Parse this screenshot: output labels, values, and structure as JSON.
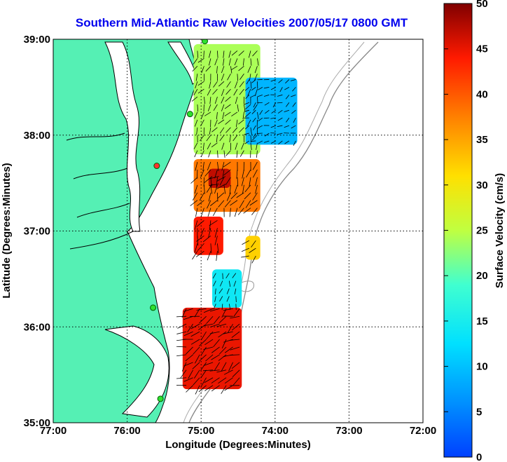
{
  "chart_data": {
    "type": "heatmap",
    "title": "Southern Mid-Atlantic Raw Velocities 2007/05/17 0800 GMT",
    "xlabel": "Longitude (Degrees:Minutes)",
    "ylabel": "Latitude (Degrees:Minutes)",
    "xlim": [
      -77,
      -72
    ],
    "ylim": [
      35,
      39
    ],
    "x_ticks": [
      {
        "value": -77,
        "label": "77:00"
      },
      {
        "value": -76,
        "label": "76:00"
      },
      {
        "value": -75,
        "label": "75:00"
      },
      {
        "value": -74,
        "label": "74:00"
      },
      {
        "value": -73,
        "label": "73:00"
      },
      {
        "value": -72,
        "label": "72:00"
      }
    ],
    "y_ticks": [
      {
        "value": 35,
        "label": "35:00"
      },
      {
        "value": 36,
        "label": "36:00"
      },
      {
        "value": 37,
        "label": "37:00"
      },
      {
        "value": 38,
        "label": "38:00"
      },
      {
        "value": 39,
        "label": "39:00"
      }
    ],
    "grid": true,
    "colorbar": {
      "label": "Surface Velocity (cm/s)",
      "min": 0,
      "max": 50,
      "ticks": [
        0,
        5,
        10,
        15,
        20,
        25,
        30,
        35,
        40,
        45,
        50
      ],
      "colormap": "jet"
    },
    "land_color": "#55f0b4",
    "velocity_regions": [
      {
        "lon": [
          -75.1,
          -74.2
        ],
        "lat": [
          37.8,
          38.95
        ],
        "speed": 24
      },
      {
        "lon": [
          -74.4,
          -73.7
        ],
        "lat": [
          37.9,
          38.6
        ],
        "speed": 9
      },
      {
        "lon": [
          -75.1,
          -74.2
        ],
        "lat": [
          37.2,
          37.75
        ],
        "speed": 38
      },
      {
        "lon": [
          -74.9,
          -74.6
        ],
        "lat": [
          37.45,
          37.65
        ],
        "speed": 47
      },
      {
        "lon": [
          -75.1,
          -74.7
        ],
        "lat": [
          36.75,
          37.15
        ],
        "speed": 44
      },
      {
        "lon": [
          -74.4,
          -74.2
        ],
        "lat": [
          36.7,
          36.95
        ],
        "speed": 32
      },
      {
        "lon": [
          -74.85,
          -74.45
        ],
        "lat": [
          36.2,
          36.6
        ],
        "speed": 14
      },
      {
        "lon": [
          -75.25,
          -74.45
        ],
        "lat": [
          35.35,
          36.2
        ],
        "speed": 45
      }
    ],
    "stations": [
      {
        "lon": -74.95,
        "lat": 38.98
      },
      {
        "lon": -75.15,
        "lat": 38.22
      },
      {
        "lon": -75.6,
        "lat": 37.68
      },
      {
        "lon": -75.65,
        "lat": 36.2
      },
      {
        "lon": -75.55,
        "lat": 35.25
      }
    ]
  }
}
